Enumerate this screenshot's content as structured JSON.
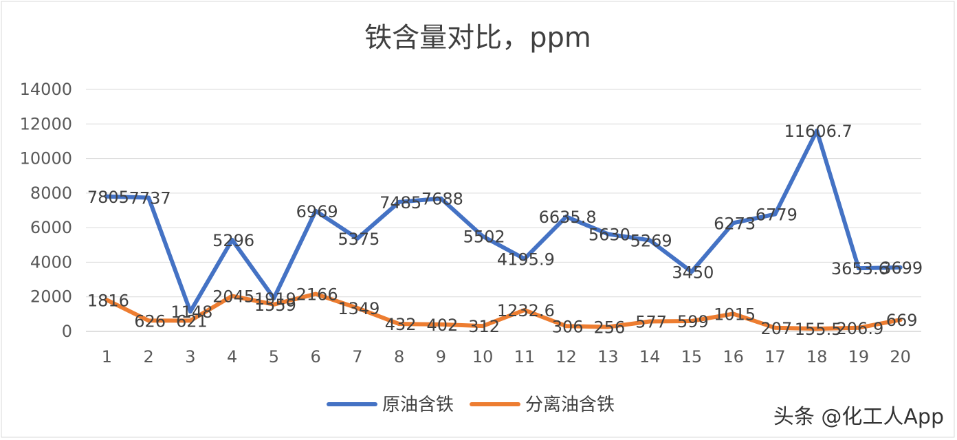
{
  "chart_data": {
    "type": "line",
    "title": "铁含量对比，ppm",
    "categories": [
      "1",
      "2",
      "3",
      "4",
      "5",
      "6",
      "7",
      "8",
      "9",
      "10",
      "11",
      "12",
      "13",
      "14",
      "15",
      "16",
      "17",
      "18",
      "19",
      "20"
    ],
    "series": [
      {
        "name": "原油含铁",
        "color": "#4472C4",
        "values": [
          7805,
          7737,
          1148,
          5296,
          1919,
          6969,
          5375,
          7485,
          7688,
          5502,
          4195.9,
          6635.8,
          5630,
          5269,
          3450,
          6273,
          6779,
          11606.7,
          3653.6,
          3699
        ],
        "labels": [
          "7805",
          "7737",
          "1148",
          "5296",
          "1919",
          "6969",
          "5375",
          "7485",
          "7688",
          "5502",
          "4195.9",
          "6635.8",
          "5630",
          "5269",
          "3450",
          "6273",
          "6779",
          "11606.7",
          "3653.6",
          "3699"
        ]
      },
      {
        "name": "分离油含铁",
        "color": "#ED7D31",
        "values": [
          1816,
          626,
          621,
          2045,
          1559,
          2166,
          1349,
          432,
          402,
          312,
          1232.6,
          306,
          256,
          577,
          599,
          1015,
          207,
          155.5,
          206.9,
          669
        ],
        "labels": [
          "1816",
          "626",
          "621",
          "2045",
          "1559",
          "2166",
          "1349",
          "432",
          "402",
          "312",
          "1232.6",
          "306",
          "256",
          "577",
          "599",
          "1015",
          "207",
          "155.5",
          "206.9",
          "669"
        ]
      }
    ],
    "y_ticks": [
      "0",
      "2000",
      "4000",
      "6000",
      "8000",
      "10000",
      "12000",
      "14000"
    ],
    "ylim": [
      0,
      14000
    ],
    "grid": true,
    "legend_position": "bottom"
  },
  "watermark": "头条 @化工人App"
}
